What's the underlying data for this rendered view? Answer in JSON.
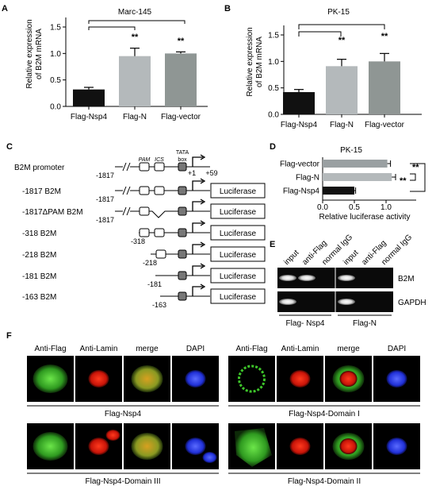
{
  "panels": {
    "A": {
      "letter": "A",
      "title": "Marc-145",
      "ylabel_line1": "Relative expression",
      "ylabel_line2": "of B2M mRNA",
      "yticks": [
        "0.0",
        "0.5",
        "1.0",
        "1.5"
      ],
      "sig": [
        "**",
        "**"
      ]
    },
    "B": {
      "letter": "B",
      "title": "PK-15",
      "ylabel_line1": "Relative expression",
      "ylabel_line2": "of B2M mRNA",
      "yticks": [
        "0.0",
        "0.5",
        "1.0",
        "1.5"
      ],
      "sig": [
        "**",
        "**"
      ]
    },
    "C": {
      "letter": "C",
      "rows": [
        "B2M promoter",
        "-1817 B2M",
        "-1817ΔPAM B2M",
        "-318 B2M",
        "-218 B2M",
        "-181 B2M",
        "-163 B2M"
      ],
      "start_labels": [
        "-1817",
        "-1817",
        "-1817",
        "-318",
        "-218",
        "-181",
        "-163"
      ],
      "element_labels": [
        "PAM",
        "ICS"
      ],
      "tata_line1": "TATA",
      "tata_line2": "box",
      "tss_labels": [
        "+1",
        "+59"
      ],
      "reporter": "Luciferase"
    },
    "D": {
      "letter": "D",
      "title": "PK-15",
      "xlabel": "Relative luciferase activity",
      "xticks": [
        "0.0",
        "0.5",
        "1.0"
      ],
      "sig": [
        "**",
        "**"
      ]
    },
    "E": {
      "letter": "E",
      "lanes": [
        "input",
        "anti-Flag",
        "normal IgG",
        "input",
        "anti-Flag",
        "normal IgG"
      ],
      "bands": [
        "B2M",
        "GAPDH"
      ],
      "groups": [
        "Flag- Nsp4",
        "Flag-N"
      ]
    },
    "F": {
      "letter": "F",
      "channels": [
        "Anti-Flag",
        "Anti-Lamin",
        "merge",
        "DAPI"
      ],
      "captions": [
        "Flag-Nsp4",
        "Flag-Nsp4-Domain I",
        "Flag-Nsp4-Domain III",
        "Flag-Nsp4-Domain II"
      ]
    }
  },
  "chart_data": [
    {
      "type": "bar",
      "title": "Marc-145",
      "ylabel": "Relative expression of B2M mRNA",
      "categories": [
        "Flag-Nsp4",
        "Flag-N",
        "Flag-vector"
      ],
      "values": [
        0.32,
        0.95,
        1.0
      ],
      "errors": [
        0.04,
        0.15,
        0.03
      ],
      "ylim": [
        0,
        1.5
      ],
      "colors": [
        "#111111",
        "#b4b9bb",
        "#8f9694"
      ]
    },
    {
      "type": "bar",
      "title": "PK-15",
      "ylabel": "Relative expression of B2M mRNA",
      "categories": [
        "Flag-Nsp4",
        "Flag-N",
        "Flag-vector"
      ],
      "values": [
        0.42,
        0.91,
        1.0
      ],
      "errors": [
        0.05,
        0.13,
        0.15
      ],
      "ylim": [
        0,
        1.5
      ],
      "colors": [
        "#111111",
        "#b4b9bb",
        "#8f9694"
      ]
    },
    {
      "type": "bar",
      "orientation": "horizontal",
      "title": "PK-15",
      "xlabel": "Relative luciferase activity",
      "categories": [
        "Flag-vector",
        "Flag-N",
        "Flag-Nsp4"
      ],
      "values": [
        1.02,
        1.09,
        0.5
      ],
      "errors": [
        0.05,
        0.06,
        0.02
      ],
      "xlim": [
        0,
        1.2
      ],
      "colors": [
        "#9aa0a2",
        "#b4b9bb",
        "#111111"
      ]
    }
  ]
}
